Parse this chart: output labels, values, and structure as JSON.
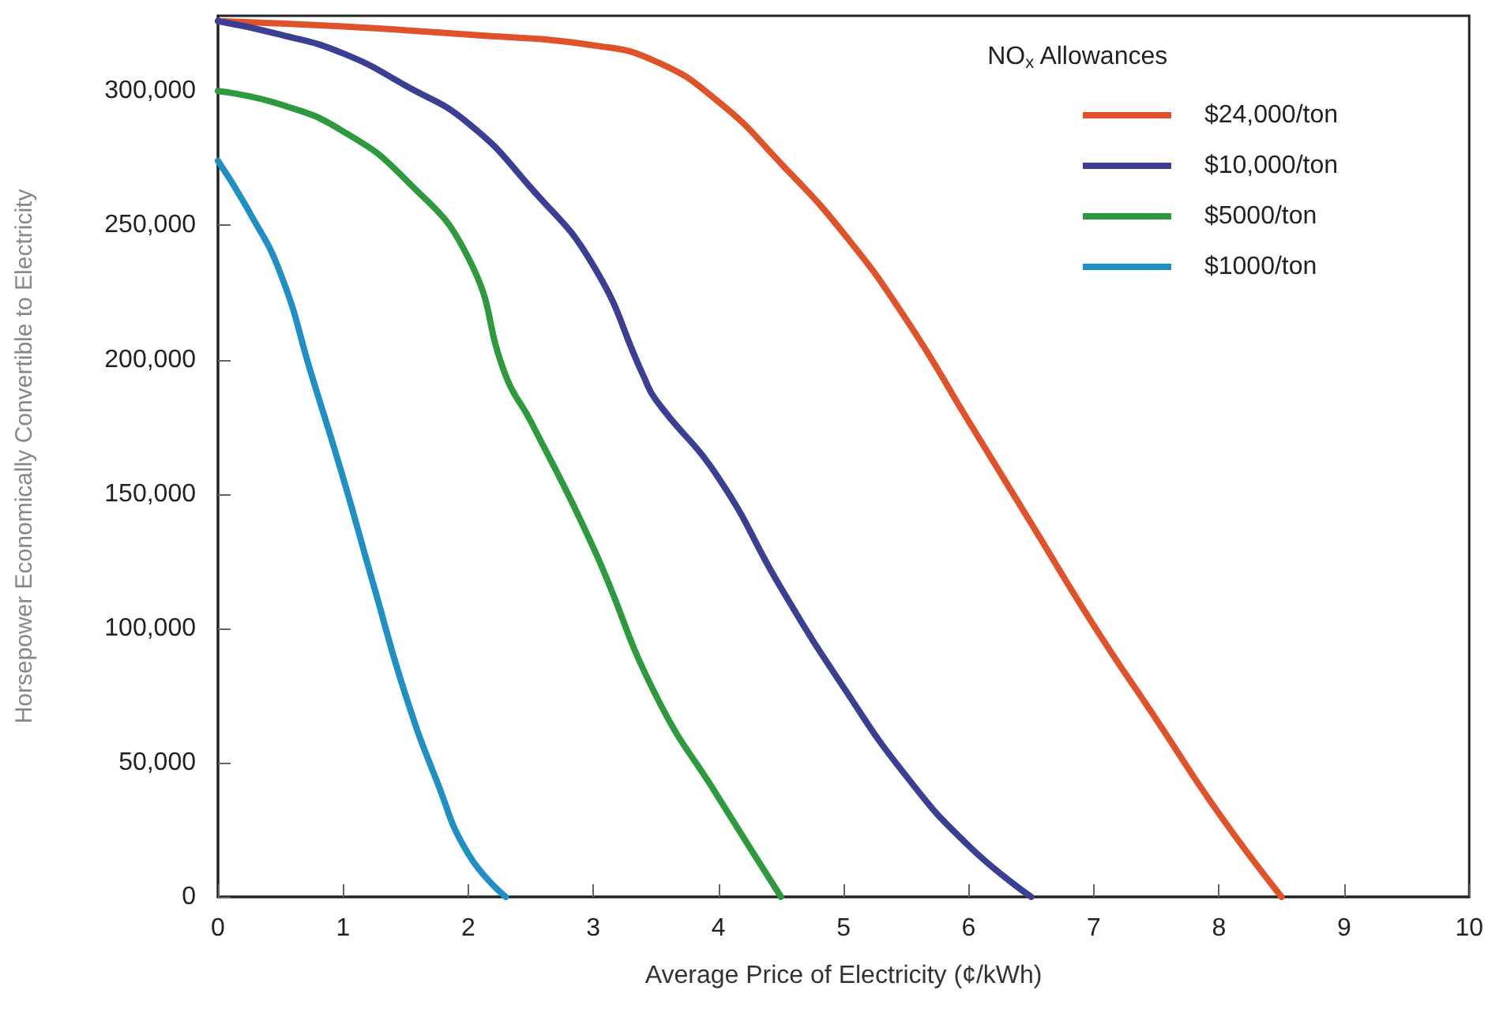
{
  "chart_data": {
    "type": "line",
    "xlabel": "Average Price of Electricity (¢/kWh)",
    "ylabel": "Horsepower Economically Convertible to Electricity",
    "legend_title": "NO$_{x}$ Allowances",
    "legend": "top right",
    "grid": false,
    "marker": "none",
    "line_style": "solid",
    "xlim": [
      0,
      10
    ],
    "xticks": [
      0,
      1,
      2,
      3,
      4,
      5,
      6,
      7,
      8,
      9,
      10
    ],
    "ylim": [
      0,
      328000
    ],
    "yticks": [
      0,
      {
        "value": 50000,
        "label": "50,000"
      },
      {
        "value": 100000,
        "label": "100,000"
      },
      {
        "value": 150000,
        "label": "150,000"
      },
      {
        "value": 200000,
        "label": "200,000"
      },
      {
        "value": 250000,
        "label": "250,000"
      },
      {
        "value": 300000,
        "label": "300,000"
      }
    ],
    "series": [
      {
        "name": "$24,000/ton",
        "color": "#e0522a",
        "x": [
          0,
          1,
          2,
          3,
          3.5,
          4,
          4.5,
          5,
          5.5,
          6,
          6.5,
          7,
          7.5,
          8,
          8.5
        ],
        "values": [
          326000,
          324000,
          321000,
          317000,
          311000,
          296000,
          273000,
          247000,
          215000,
          177000,
          139000,
          101000,
          66000,
          31000,
          0
        ]
      },
      {
        "name": "$10,000/ton",
        "color": "#3a3f94",
        "x": [
          0,
          0.5,
          1,
          1.5,
          2,
          2.5,
          3,
          3.4,
          3.5,
          4,
          4.5,
          5,
          5.5,
          6,
          6.5
        ],
        "values": [
          326000,
          321000,
          314000,
          302000,
          288000,
          264000,
          235000,
          194000,
          185000,
          156000,
          115000,
          78000,
          45000,
          19000,
          0
        ]
      },
      {
        "name": "$5000/ton",
        "color": "#2e9a3e",
        "x": [
          0,
          0.5,
          1,
          1.5,
          2,
          2.3,
          2.5,
          3,
          3.5,
          4,
          4.5
        ],
        "values": [
          300000,
          295000,
          285000,
          267000,
          238000,
          194000,
          177000,
          130000,
          75000,
          37000,
          0
        ]
      },
      {
        "name": "$1000/ton",
        "color": "#1f8fc4",
        "x": [
          0,
          0.25,
          0.5,
          0.75,
          1,
          1.25,
          1.5,
          1.75,
          2,
          2.3
        ],
        "values": [
          274000,
          255000,
          232000,
          194000,
          156000,
          115000,
          75000,
          43000,
          16000,
          0
        ]
      }
    ]
  }
}
